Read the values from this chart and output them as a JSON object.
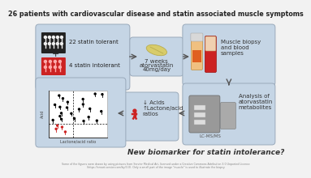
{
  "title": "26 patients with cardiovascular disease and statin associated muscle symptoms",
  "title_fontsize": 5.8,
  "bg_color": "#f2f2f2",
  "box_color": "#c5d5e5",
  "box_edge": "#9aaabb",
  "arrow_color": "#555555",
  "footer_line1": "Some of the figures were drawn by using pictures from Servier Medical Art, licensed under a Creative Commons Attribution 3.0 Unported License",
  "footer_line2": "(https://smart.servier.com/by/3.0). Only a small part of the image \"muscle\" is used to illustrate the biopsy.",
  "bottom_text": "New biomarker for statin intolerance?",
  "box1_text1": "22 statin tolerant",
  "box1_plus": "+",
  "box1_text2": "4 statin intolerant",
  "box2_line1": "7 weeks",
  "box2_line2": "atorvastatin",
  "box2_line3": "40mg/day",
  "box3_line1": "Muscle biopsy",
  "box3_line2": "and blood",
  "box3_line3": "samples",
  "box4_line1": "Analysis of",
  "box4_line2": "atorvastatin",
  "box4_line3": "metabolites",
  "box4_sub": "LC-MS/MS",
  "box5_line1": "↓ Acids",
  "box5_line2": "↑Lactone/acid",
  "box5_line3": "ratios",
  "scatter_xlabel": "Lactone/acid ratio",
  "scatter_ylabel": "Acid"
}
